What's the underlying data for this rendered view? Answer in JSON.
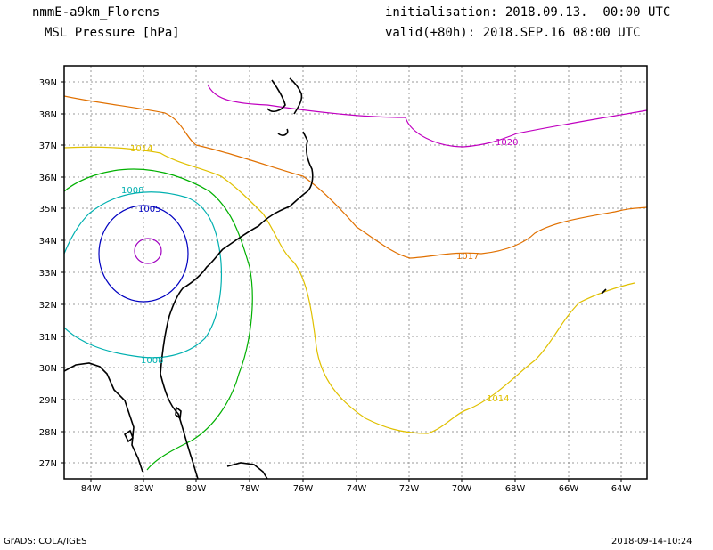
{
  "header": {
    "model": "nmmE-a9km_Florens",
    "variable": "MSL Pressure [hPa]",
    "init": "initialisation: 2018.09.13.  00:00 UTC",
    "valid": "valid(+80h): 2018.SEP.16 08:00 UTC"
  },
  "footer": {
    "left": "GrADS: COLA/IGES",
    "right": "2018-09-14-10:24"
  },
  "map": {
    "lat_labels": [
      "39N",
      "38N",
      "37N",
      "36N",
      "35N",
      "34N",
      "33N",
      "32N",
      "31N",
      "30N",
      "29N",
      "28N",
      "27N"
    ],
    "lon_labels": [
      "84W",
      "82W",
      "80W",
      "78W",
      "76W",
      "74W",
      "72W",
      "70W",
      "68W",
      "66W",
      "64W"
    ],
    "contour_labels": [
      {
        "text": "1020",
        "color": "#c000c0"
      },
      {
        "text": "1017",
        "color": "#e07000"
      },
      {
        "text": "1014",
        "color": "#e0c000"
      },
      {
        "text": "1014",
        "color": "#e0c000"
      },
      {
        "text": "1008",
        "color": "#00b0b0"
      },
      {
        "text": "1008",
        "color": "#00b0b0"
      },
      {
        "text": "1005",
        "color": "#0000c0"
      }
    ]
  }
}
